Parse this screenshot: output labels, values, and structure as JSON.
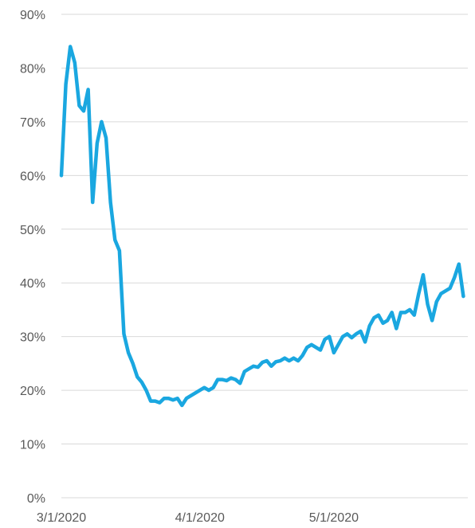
{
  "chart_data": {
    "type": "line",
    "title": "",
    "xlabel": "",
    "ylabel": "",
    "x_range": [
      "2020-03-01",
      "2020-05-31"
    ],
    "ylim": [
      0,
      90
    ],
    "y_ticks": [
      0,
      10,
      20,
      30,
      40,
      50,
      60,
      70,
      80,
      90
    ],
    "y_tick_labels": [
      "0%",
      "10%",
      "20%",
      "30%",
      "40%",
      "50%",
      "60%",
      "70%",
      "80%",
      "90%"
    ],
    "x_ticks": [
      "2020-03-01",
      "2020-04-01",
      "2020-05-01"
    ],
    "x_tick_labels": [
      "3/1/2020",
      "4/1/2020",
      "5/1/2020"
    ],
    "grid": true,
    "legend": "none",
    "colors": {
      "line": "#1aa7e0",
      "grid": "#d9d9d9",
      "tick_text": "#595959"
    },
    "series": [
      {
        "points": [
          [
            "2020-03-01",
            60
          ],
          [
            "2020-03-02",
            77
          ],
          [
            "2020-03-03",
            84
          ],
          [
            "2020-03-04",
            81
          ],
          [
            "2020-03-05",
            73
          ],
          [
            "2020-03-06",
            72
          ],
          [
            "2020-03-07",
            76
          ],
          [
            "2020-03-08",
            55
          ],
          [
            "2020-03-09",
            66
          ],
          [
            "2020-03-10",
            70
          ],
          [
            "2020-03-11",
            67
          ],
          [
            "2020-03-12",
            55
          ],
          [
            "2020-03-13",
            48
          ],
          [
            "2020-03-14",
            46
          ],
          [
            "2020-03-15",
            30.5
          ],
          [
            "2020-03-16",
            27
          ],
          [
            "2020-03-17",
            25
          ],
          [
            "2020-03-18",
            22.5
          ],
          [
            "2020-03-19",
            21.5
          ],
          [
            "2020-03-20",
            20
          ],
          [
            "2020-03-21",
            18
          ],
          [
            "2020-03-22",
            18
          ],
          [
            "2020-03-23",
            17.7
          ],
          [
            "2020-03-24",
            18.5
          ],
          [
            "2020-03-25",
            18.5
          ],
          [
            "2020-03-26",
            18.2
          ],
          [
            "2020-03-27",
            18.5
          ],
          [
            "2020-03-28",
            17.2
          ],
          [
            "2020-03-29",
            18.5
          ],
          [
            "2020-03-30",
            19
          ],
          [
            "2020-03-31",
            19.5
          ],
          [
            "2020-04-01",
            20
          ],
          [
            "2020-04-02",
            20.5
          ],
          [
            "2020-04-03",
            20
          ],
          [
            "2020-04-04",
            20.5
          ],
          [
            "2020-04-05",
            22
          ],
          [
            "2020-04-06",
            22
          ],
          [
            "2020-04-07",
            21.8
          ],
          [
            "2020-04-08",
            22.3
          ],
          [
            "2020-04-09",
            22
          ],
          [
            "2020-04-10",
            21.3
          ],
          [
            "2020-04-11",
            23.5
          ],
          [
            "2020-04-12",
            24
          ],
          [
            "2020-04-13",
            24.5
          ],
          [
            "2020-04-14",
            24.3
          ],
          [
            "2020-04-15",
            25.2
          ],
          [
            "2020-04-16",
            25.5
          ],
          [
            "2020-04-17",
            24.5
          ],
          [
            "2020-04-18",
            25.3
          ],
          [
            "2020-04-19",
            25.5
          ],
          [
            "2020-04-20",
            26
          ],
          [
            "2020-04-21",
            25.5
          ],
          [
            "2020-04-22",
            26
          ],
          [
            "2020-04-23",
            25.5
          ],
          [
            "2020-04-24",
            26.5
          ],
          [
            "2020-04-25",
            28
          ],
          [
            "2020-04-26",
            28.5
          ],
          [
            "2020-04-27",
            28
          ],
          [
            "2020-04-28",
            27.5
          ],
          [
            "2020-04-29",
            29.5
          ],
          [
            "2020-04-30",
            30
          ],
          [
            "2020-05-01",
            27
          ],
          [
            "2020-05-02",
            28.5
          ],
          [
            "2020-05-03",
            30
          ],
          [
            "2020-05-04",
            30.5
          ],
          [
            "2020-05-05",
            29.8
          ],
          [
            "2020-05-06",
            30.5
          ],
          [
            "2020-05-07",
            31
          ],
          [
            "2020-05-08",
            29
          ],
          [
            "2020-05-09",
            32
          ],
          [
            "2020-05-10",
            33.5
          ],
          [
            "2020-05-11",
            34
          ],
          [
            "2020-05-12",
            32.5
          ],
          [
            "2020-05-13",
            33
          ],
          [
            "2020-05-14",
            34.5
          ],
          [
            "2020-05-15",
            31.5
          ],
          [
            "2020-05-16",
            34.5
          ],
          [
            "2020-05-17",
            34.5
          ],
          [
            "2020-05-18",
            35
          ],
          [
            "2020-05-19",
            34
          ],
          [
            "2020-05-20",
            38
          ],
          [
            "2020-05-21",
            41.5
          ],
          [
            "2020-05-22",
            36
          ],
          [
            "2020-05-23",
            33
          ],
          [
            "2020-05-24",
            36.5
          ],
          [
            "2020-05-25",
            38
          ],
          [
            "2020-05-26",
            38.5
          ],
          [
            "2020-05-27",
            39
          ],
          [
            "2020-05-28",
            41
          ],
          [
            "2020-05-29",
            43.5
          ],
          [
            "2020-05-30",
            37.5
          ]
        ]
      }
    ]
  }
}
